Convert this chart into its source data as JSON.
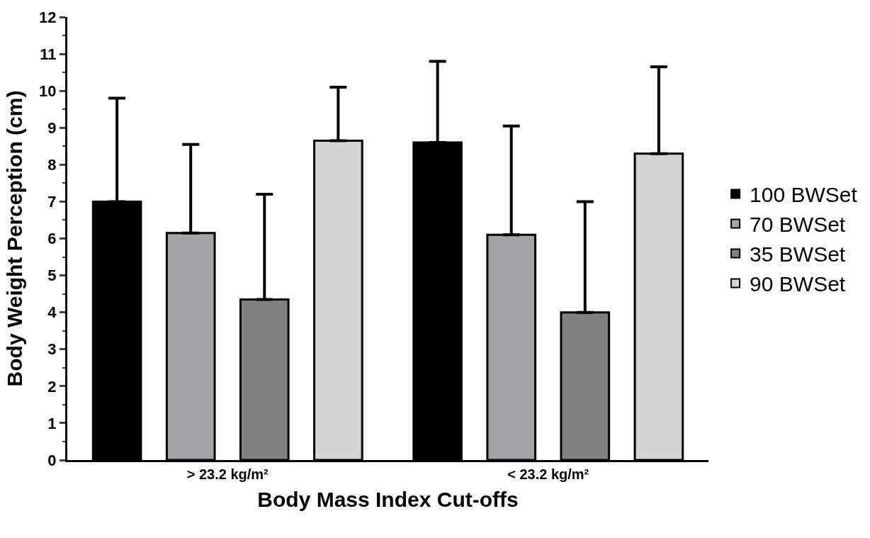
{
  "chart_data": {
    "type": "bar",
    "xlabel": "Body Mass Index Cut-offs",
    "ylabel": "Body Weight Perception (cm)",
    "categories": [
      "> 23.2 kg/m²",
      "< 23.2 kg/m²"
    ],
    "series": [
      {
        "name": "100 BWSet",
        "color": "#000000",
        "values": [
          7.0,
          8.6
        ],
        "errors": [
          [
            7.0,
            9.8
          ],
          [
            8.6,
            10.8
          ]
        ]
      },
      {
        "name": "70 BWSet",
        "color": "#a3a3a8",
        "values": [
          6.15,
          6.1
        ],
        "errors": [
          [
            6.15,
            8.55
          ],
          [
            6.1,
            9.05
          ]
        ]
      },
      {
        "name": "35 BWSet",
        "color": "#808080",
        "values": [
          4.35,
          4.0
        ],
        "errors": [
          [
            4.35,
            7.2
          ],
          [
            4.0,
            7.0
          ]
        ]
      },
      {
        "name": "90 BWSet",
        "color": "#d4d4d4",
        "values": [
          8.65,
          8.3
        ],
        "errors": [
          [
            8.65,
            10.1
          ],
          [
            8.3,
            10.65
          ]
        ]
      }
    ],
    "ylim": [
      0,
      12
    ],
    "yticks": [
      0,
      1,
      2,
      3,
      4,
      5,
      6,
      7,
      8,
      9,
      10,
      11,
      12
    ],
    "legend": "right"
  }
}
